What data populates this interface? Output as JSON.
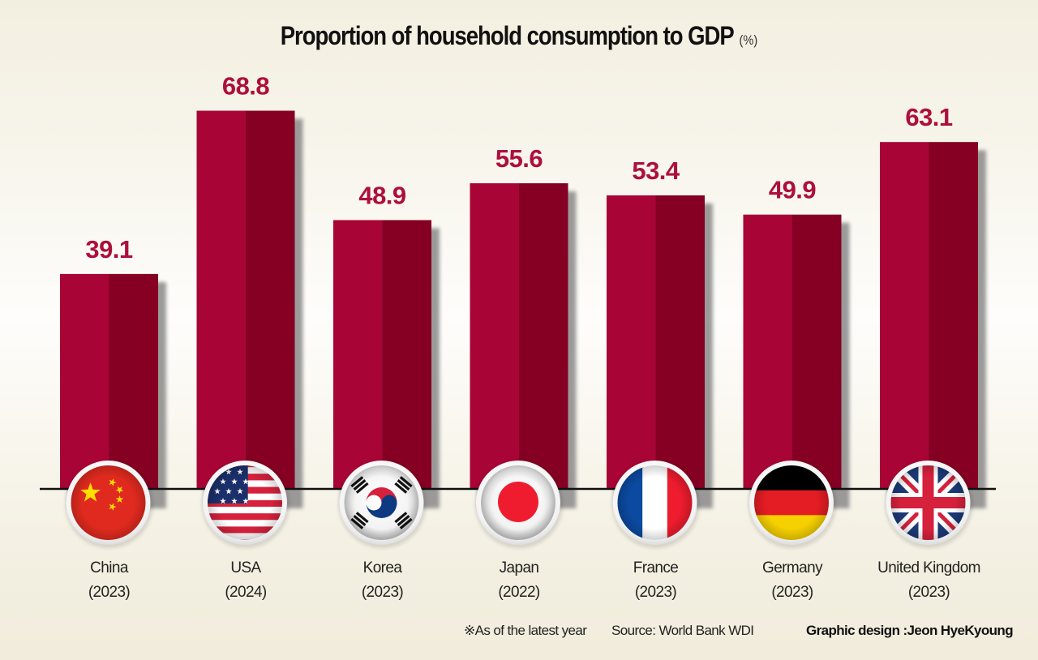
{
  "title": {
    "text": "Proportion of household consumption to GDP",
    "unit": "(%)"
  },
  "footer": {
    "note": "※As of the latest year",
    "source": "Source: World Bank WDI",
    "credit": "Graphic design :Jeon HyeKyoung"
  },
  "colors": {
    "bar_light": "#a80536",
    "bar_dark": "#850022",
    "label": "#ad0f3c",
    "shadow": "#8a8a8a",
    "baseline": "#111111"
  },
  "chart_data": {
    "type": "bar",
    "title": "Proportion of household consumption to GDP (%)",
    "xlabel": "",
    "ylabel": "",
    "ylim": [
      0,
      70
    ],
    "grid": false,
    "legend": "none",
    "categories": [
      "China",
      "USA",
      "Korea",
      "Japan",
      "France",
      "Germany",
      "United Kingdom"
    ],
    "years": [
      "(2023)",
      "(2024)",
      "(2023)",
      "(2022)",
      "(2023)",
      "(2023)",
      "(2023)"
    ],
    "flags": [
      "china-flag-icon",
      "usa-flag-icon",
      "korea-flag-icon",
      "japan-flag-icon",
      "france-flag-icon",
      "germany-flag-icon",
      "uk-flag-icon"
    ],
    "values": [
      39.1,
      68.8,
      48.9,
      55.6,
      53.4,
      49.9,
      63.1
    ],
    "value_labels": [
      "39.1",
      "68.8",
      "48.9",
      "55.6",
      "53.4",
      "49.9",
      "63.1"
    ]
  }
}
